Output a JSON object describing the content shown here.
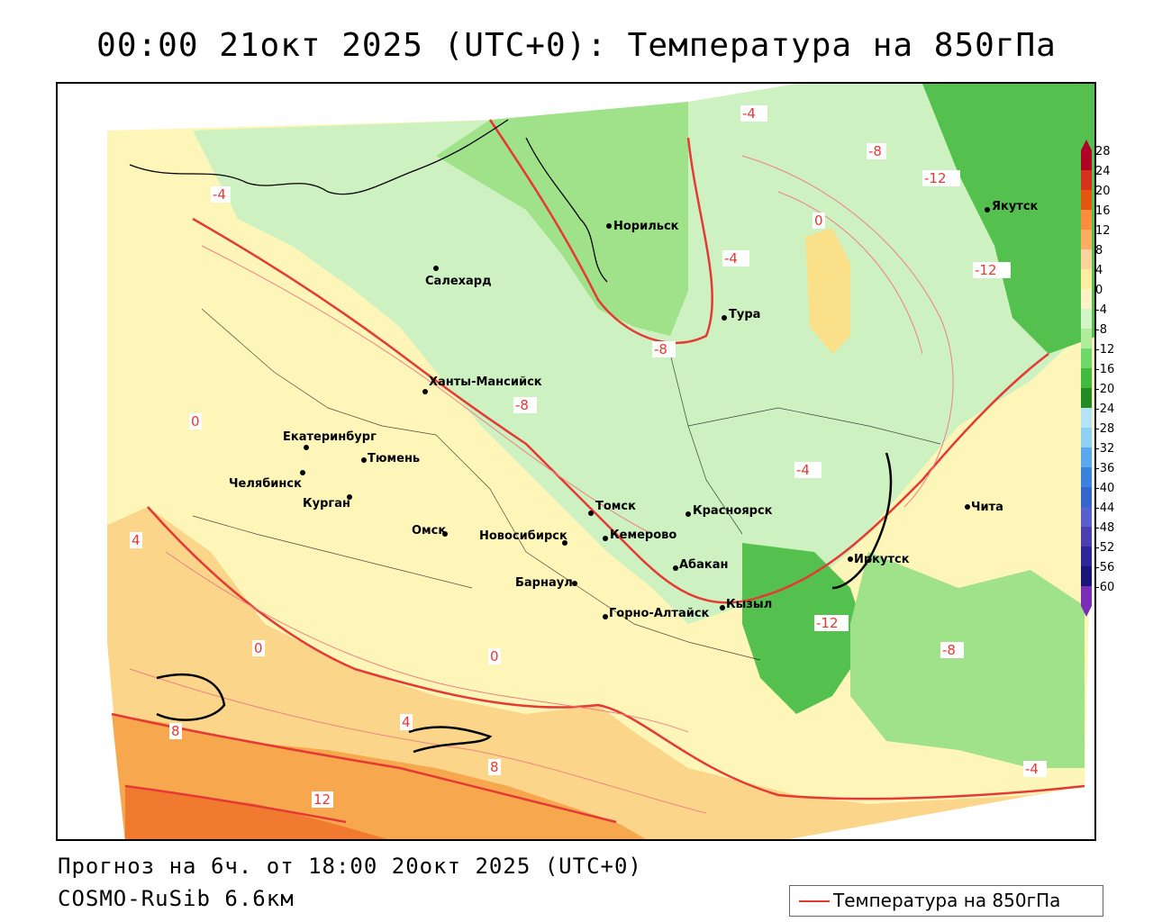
{
  "title": "00:00 21окт 2025 (UTC+0): Температура на 850гПа",
  "footer": {
    "forecast": "Прогноз на 6ч. от 18:00 20окт 2025 (UTC+0)",
    "model": "COSMO-RuSib 6.6км"
  },
  "legend": {
    "line_label": "Температура на 850гПа",
    "line_color": "#e53935"
  },
  "colorbar": {
    "labels": [
      "28",
      "24",
      "20",
      "16",
      "12",
      "8",
      "4",
      "0",
      "-4",
      "-8",
      "-12",
      "-16",
      "-20",
      "-24",
      "-28",
      "-32",
      "-36",
      "-40",
      "-44",
      "-48",
      "-52",
      "-56",
      "-60"
    ],
    "colors": [
      "#b10026",
      "#d7301f",
      "#e6550d",
      "#fd8d3c",
      "#fdae61",
      "#fdd49e",
      "#ffeda0",
      "#fef3c7",
      "#d4f5c8",
      "#b0ec9a",
      "#6ed86a",
      "#3fbb3f",
      "#228b22",
      "#b3e3f5",
      "#8fd0f5",
      "#5aa8ee",
      "#3a82e0",
      "#3366cc",
      "#5a5fd0",
      "#4c3fb0",
      "#2e2599",
      "#1a147a",
      "#7a2db8"
    ]
  },
  "cities": [
    {
      "name": "Норильск"
    },
    {
      "name": "Якутск"
    },
    {
      "name": "Салехард"
    },
    {
      "name": "Тура"
    },
    {
      "name": "Ханты-Мансийск"
    },
    {
      "name": "Екатеринбург"
    },
    {
      "name": "Тюмень"
    },
    {
      "name": "Челябинск"
    },
    {
      "name": "Курган"
    },
    {
      "name": "Омск"
    },
    {
      "name": "Новосибирск"
    },
    {
      "name": "Томск"
    },
    {
      "name": "Кемерово"
    },
    {
      "name": "Красноярск"
    },
    {
      "name": "Барнаул"
    },
    {
      "name": "Абакан"
    },
    {
      "name": "Горно-Алтайск"
    },
    {
      "name": "Кызыл"
    },
    {
      "name": "Иркутск"
    },
    {
      "name": "Чита"
    }
  ],
  "isotherm_labels": [
    "-4",
    "-8",
    "-12",
    "0",
    "4",
    "8",
    "12"
  ]
}
